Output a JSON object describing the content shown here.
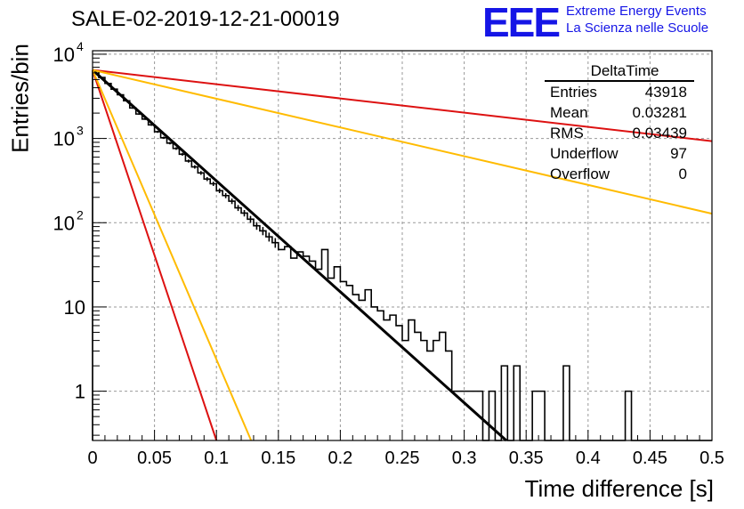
{
  "header": {
    "title": "SALE-02-2019-12-21-00019",
    "logo_text": "EEE",
    "logo_line1": "Extreme Energy Events",
    "logo_line2": "La Scienza nelle Scuole"
  },
  "stats_box": {
    "title": "DeltaTime",
    "rows": [
      {
        "label": "Entries",
        "value": "43918"
      },
      {
        "label": "Mean",
        "value": "0.03281"
      },
      {
        "label": "RMS",
        "value": "0.03439"
      },
      {
        "label": "Underflow",
        "value": "97"
      },
      {
        "label": "Overflow",
        "value": "0"
      }
    ]
  },
  "colors": {
    "histogram": "#000000",
    "fit": "#000000",
    "red_line": "#dd1111",
    "yellow_line": "#ffbb00",
    "grid": "#999999"
  },
  "chart_data": {
    "type": "line",
    "title": "SALE-02-2019-12-21-00019",
    "xlabel": "Time difference [s]",
    "ylabel": "Entries/bin",
    "xlim": [
      0,
      0.5
    ],
    "ylim": [
      0.26,
      11000
    ],
    "ylog": true,
    "grid": true,
    "legend": "top-right",
    "x_ticks": [
      "0",
      "0.05",
      "0.1",
      "0.15",
      "0.2",
      "0.25",
      "0.3",
      "0.35",
      "0.4",
      "0.45",
      "0.5"
    ],
    "y_ticks": [
      {
        "value": 1,
        "label": "1",
        "exp": ""
      },
      {
        "value": 10,
        "label": "10",
        "exp": ""
      },
      {
        "value": 100,
        "label": "10",
        "exp": "2"
      },
      {
        "value": 1000,
        "label": "10",
        "exp": "3"
      },
      {
        "value": 10000,
        "label": "10",
        "exp": "4"
      }
    ],
    "histogram": {
      "bin_width": 0.005,
      "bin_start": 0,
      "values": [
        6300,
        5300,
        4500,
        3850,
        3300,
        2800,
        2300,
        1950,
        1700,
        1450,
        1200,
        1020,
        880,
        760,
        650,
        540,
        460,
        390,
        330,
        290,
        240,
        210,
        180,
        150,
        130,
        110,
        92,
        80,
        68,
        58,
        48,
        52,
        38,
        45,
        40,
        35,
        28,
        48,
        22,
        30,
        20,
        18,
        14,
        12,
        16,
        10,
        9,
        7,
        8,
        6,
        4,
        7,
        5,
        4,
        3,
        4,
        5,
        3,
        1,
        1,
        1,
        1,
        1,
        0,
        1,
        0,
        2,
        0,
        2,
        0,
        0,
        1,
        1,
        0,
        0,
        0,
        2,
        0,
        0,
        0,
        0,
        0,
        0,
        0,
        0,
        0,
        1,
        0,
        0,
        0,
        0,
        0,
        0,
        0,
        0,
        0,
        0,
        0,
        0,
        0
      ]
    },
    "series": [
      {
        "id": "fit",
        "x": [
          0,
          0.334
        ],
        "y": [
          6500,
          0.26
        ]
      },
      {
        "id": "red_steep",
        "x": [
          0,
          0.1
        ],
        "y": [
          6500,
          0.26
        ]
      },
      {
        "id": "yellow_steep",
        "x": [
          0,
          0.128
        ],
        "y": [
          6500,
          0.26
        ]
      },
      {
        "id": "red_shallow",
        "x": [
          0,
          0.5
        ],
        "y": [
          6500,
          930
        ]
      },
      {
        "id": "yellow_shallow",
        "x": [
          0,
          0.5
        ],
        "y": [
          6500,
          128
        ]
      }
    ]
  }
}
